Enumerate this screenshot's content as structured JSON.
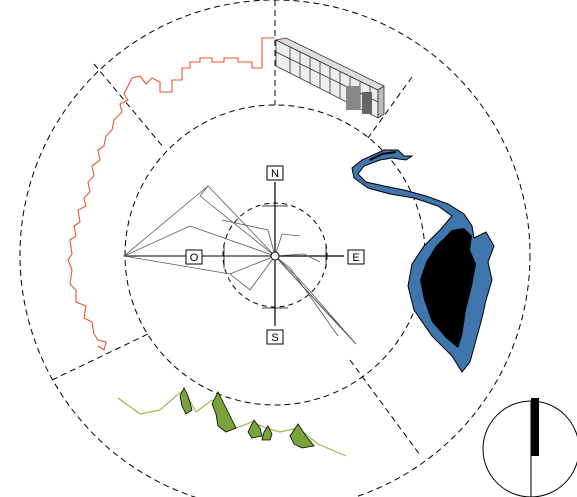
{
  "compass": {
    "north": "N",
    "east": "E",
    "south": "S",
    "west": "O"
  },
  "colors": {
    "outline_orange": "#e8552e",
    "river_blue": "#3f76ad",
    "island_black": "#000000",
    "mountain_green": "#7aa33a",
    "ground_line": "#9ab84a",
    "dash": "#000000"
  },
  "icons": [
    "compass-rose-icon",
    "building-icon",
    "river-map-icon",
    "mountain-profile-icon",
    "city-outline-icon",
    "scale-gauge-icon"
  ]
}
